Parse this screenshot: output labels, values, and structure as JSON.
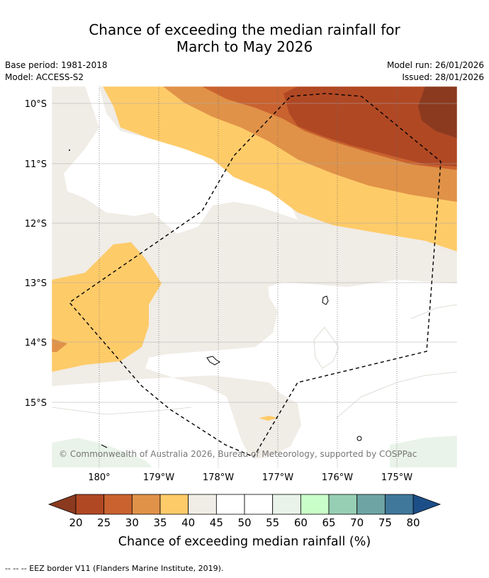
{
  "title_line1": "Chance of exceeding the median rainfall for",
  "title_line2": "March to May 2026",
  "base_period": "Base period: 1981-2018",
  "model": "Model: ACCESS-S2",
  "model_run": "Model run: 26/01/2026",
  "issued": "Issued: 28/01/2026",
  "copyright": "© Commonwealth of Australia 2026, Bureau of Meteorology, supported by COSPPac",
  "lat_labels": [
    "10°S",
    "11°S",
    "12°S",
    "13°S",
    "14°S",
    "15°S"
  ],
  "lon_labels": [
    "180°",
    "179°W",
    "178°W",
    "177°W",
    "176°W",
    "175°W"
  ],
  "colorbar": {
    "ticks": [
      "20",
      "25",
      "30",
      "35",
      "40",
      "45",
      "50",
      "55",
      "60",
      "65",
      "70",
      "75",
      "80"
    ],
    "colors": [
      "#b04824",
      "#c9622f",
      "#e09248",
      "#fecb69",
      "#f0ece6",
      "#ffffff",
      "#ffffff",
      "#e9f3e9",
      "#c9fec9",
      "#97cfb4",
      "#6ea4a4",
      "#3f789a"
    ],
    "extend_low_color": "#8b3a1f",
    "extend_high_color": "#1c4f88",
    "label": "Chance of exceeding median rainfall (%)"
  },
  "footnote": "-- -- -- EEZ border V11 (Flanders Marine Institute, 2019)."
}
